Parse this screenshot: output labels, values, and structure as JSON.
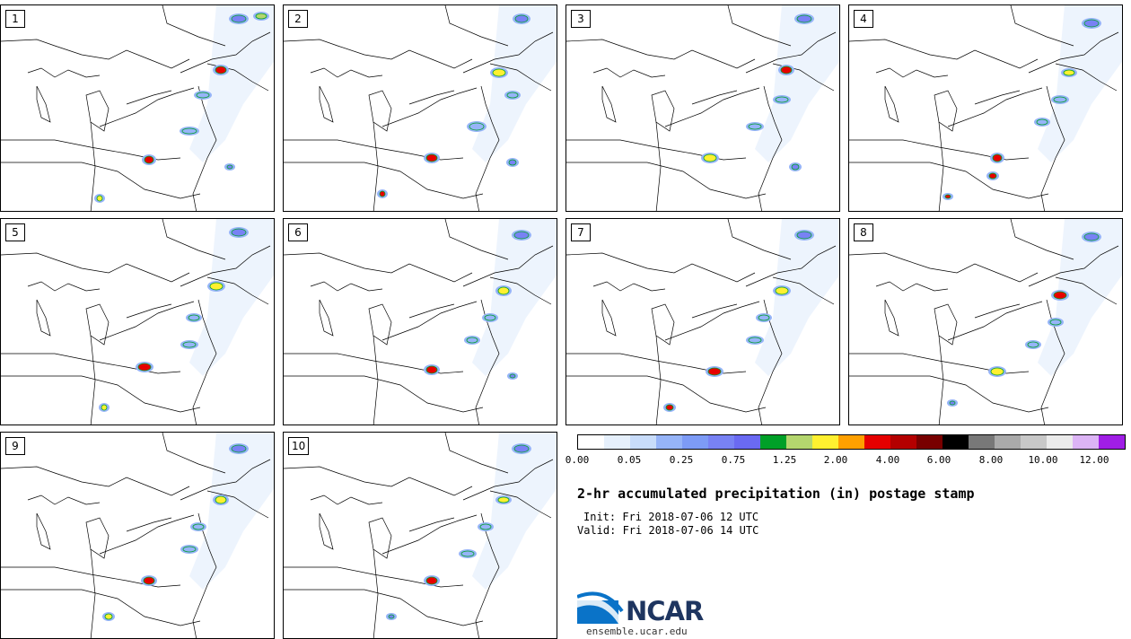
{
  "panels": [
    {
      "label": "1"
    },
    {
      "label": "2"
    },
    {
      "label": "3"
    },
    {
      "label": "4"
    },
    {
      "label": "5"
    },
    {
      "label": "6"
    },
    {
      "label": "7"
    },
    {
      "label": "8"
    },
    {
      "label": "9"
    },
    {
      "label": "10"
    }
  ],
  "colorbar": {
    "colors": [
      "#ffffff",
      "#e6f0fc",
      "#c8dcfa",
      "#96b4f8",
      "#7d9bf6",
      "#7882f4",
      "#6a6af2",
      "#00a028",
      "#b4d66e",
      "#fff030",
      "#ffa000",
      "#e60000",
      "#b40000",
      "#780000",
      "#000000",
      "#787878",
      "#aaaaaa",
      "#c8c8c8",
      "#ebebeb",
      "#dcb4f5",
      "#a01ee6"
    ],
    "tick_labels": [
      "0.00",
      "0.05",
      "0.25",
      "0.75",
      "1.25",
      "2.00",
      "4.00",
      "6.00",
      "8.00",
      "10.00",
      "12.00"
    ]
  },
  "title": "2-hr accumulated precipitation (in) postage stamp",
  "init": "Init: Fri 2018-07-06 12 UTC",
  "valid": "Valid: Fri 2018-07-06 14 UTC",
  "logo": {
    "text": "NCAR",
    "colors": {
      "blue": "#1e3560",
      "swoosh": "#0a73c8"
    }
  },
  "site": "ensemble.ucar.edu"
}
